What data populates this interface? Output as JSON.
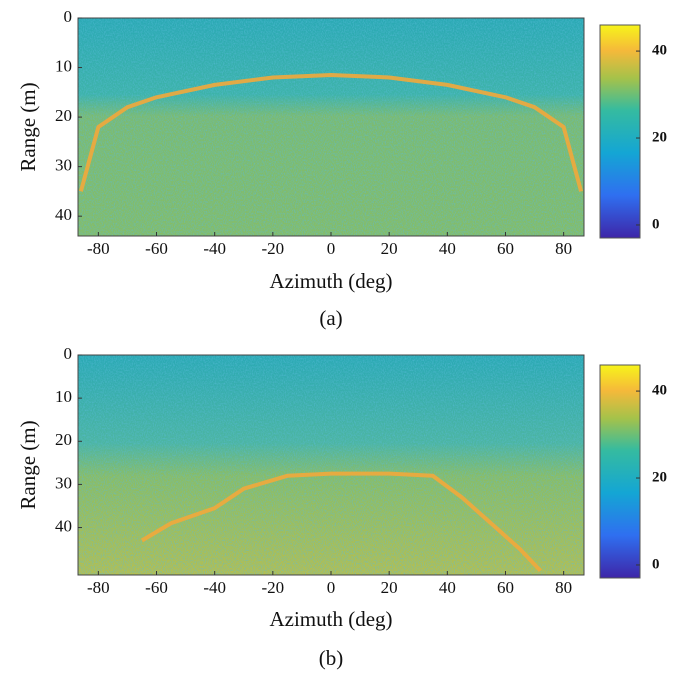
{
  "chart_data": [
    {
      "type": "heatmap",
      "xlabel": "Azimuth (deg)",
      "ylabel": "Range (m)",
      "caption": "(a)",
      "xlim": [
        -87,
        87
      ],
      "xticks": [
        -80,
        -60,
        -40,
        -20,
        0,
        20,
        40,
        60,
        80
      ],
      "ylim": [
        44,
        0
      ],
      "yticks": [
        0,
        10,
        20,
        30,
        40
      ],
      "clim": [
        -3,
        46
      ],
      "cticks": [
        0,
        20,
        40
      ],
      "series": [
        {
          "color": "#f2a93b",
          "x": [
            -86,
            -80,
            -70,
            -60,
            -40,
            -20,
            0,
            20,
            40,
            60,
            70,
            80,
            86
          ],
          "values": [
            35,
            22,
            18,
            16,
            13.5,
            12,
            11.5,
            12,
            13.5,
            16,
            18,
            22,
            35
          ]
        }
      ]
    },
    {
      "type": "heatmap",
      "xlabel": "Azimuth (deg)",
      "ylabel": "Range (m)",
      "caption": "(b)",
      "xlim": [
        -87,
        87
      ],
      "xticks": [
        -80,
        -60,
        -40,
        -20,
        0,
        20,
        40,
        60,
        80
      ],
      "ylim": [
        51,
        0
      ],
      "yticks": [
        0,
        10,
        20,
        30,
        40
      ],
      "clim": [
        -3,
        46
      ],
      "cticks": [
        0,
        20,
        40
      ],
      "series": [
        {
          "color": "#f2a93b",
          "x": [
            -65,
            -55,
            -40,
            -30,
            -15,
            0,
            20,
            35,
            45,
            55,
            65,
            72
          ],
          "values": [
            43,
            39,
            35.5,
            31,
            28,
            27.5,
            27.5,
            28,
            33,
            39,
            45,
            50
          ]
        }
      ]
    }
  ]
}
